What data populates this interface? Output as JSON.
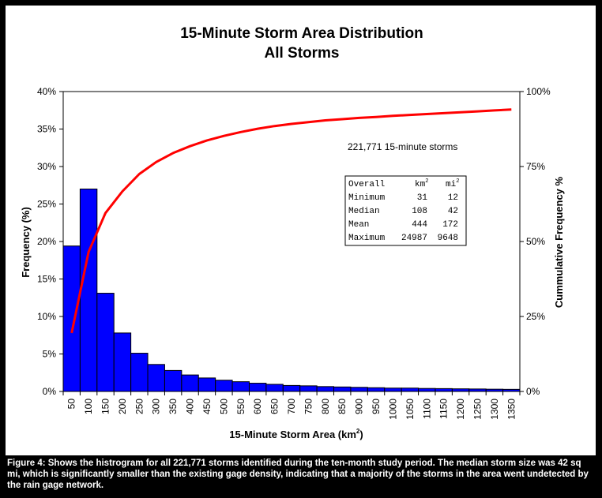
{
  "chart_data": {
    "type": "bar",
    "title": "15-Minute Storm Area Distribution",
    "subtitle": "All Storms",
    "xlabel": "15-Minute Storm Area (km",
    "xlabel_sup": "2",
    "xlabel_end": ")",
    "ylabel": "Frequency (%)",
    "y2label": "Cummulative Frequency %",
    "categories": [
      "50",
      "100",
      "150",
      "200",
      "250",
      "300",
      "350",
      "400",
      "450",
      "500",
      "550",
      "600",
      "650",
      "700",
      "750",
      "800",
      "850",
      "900",
      "950",
      "1000",
      "1050",
      "1100",
      "1150",
      "1200",
      "1250",
      "1300",
      "1350"
    ],
    "series": [
      {
        "kind": "bar",
        "axis": "left",
        "color": "#0000ff",
        "values": [
          19.4,
          27.0,
          13.1,
          7.8,
          5.1,
          3.6,
          2.8,
          2.2,
          1.8,
          1.5,
          1.3,
          1.1,
          0.95,
          0.8,
          0.75,
          0.65,
          0.6,
          0.55,
          0.5,
          0.45,
          0.45,
          0.4,
          0.38,
          0.35,
          0.33,
          0.3,
          0.28
        ]
      },
      {
        "kind": "line",
        "axis": "right",
        "color": "#ff0000",
        "values": [
          19.5,
          46.5,
          59.5,
          66.7,
          72.5,
          76.5,
          79.5,
          81.8,
          83.7,
          85.2,
          86.5,
          87.6,
          88.5,
          89.2,
          89.8,
          90.4,
          90.8,
          91.2,
          91.5,
          91.9,
          92.2,
          92.5,
          92.8,
          93.1,
          93.4,
          93.7,
          94.0
        ]
      }
    ],
    "ylim": [
      0,
      40
    ],
    "y2lim": [
      0,
      100
    ],
    "yticks": [
      "0%",
      "5%",
      "10%",
      "15%",
      "20%",
      "25%",
      "30%",
      "35%",
      "40%"
    ],
    "y2ticks": [
      "0%",
      "25%",
      "50%",
      "75%",
      "100%"
    ],
    "grid": false,
    "annotation": "221,771 15-minute storms",
    "stats_table": {
      "header": [
        "Overall",
        "km",
        "mi"
      ],
      "header_sup": [
        "",
        "2",
        "2"
      ],
      "rows": [
        [
          "Minimum",
          "31",
          "12"
        ],
        [
          "Median",
          "108",
          "42"
        ],
        [
          "Mean",
          "444",
          "172"
        ],
        [
          "Maximum",
          "24987",
          "9648"
        ]
      ]
    }
  },
  "caption": "Figure 4: Shows the histrogram for all 221,771 storms identified during the ten-month study period.  The median storm size was 42 sq mi, which is significantly smaller than the existing gage density, indicating that a majority of the storms in the area went undetected by the rain gage network.",
  "colors": {
    "bar": "#0000ff",
    "line": "#ff0000",
    "background": "#000000",
    "panel": "#ffffff"
  }
}
